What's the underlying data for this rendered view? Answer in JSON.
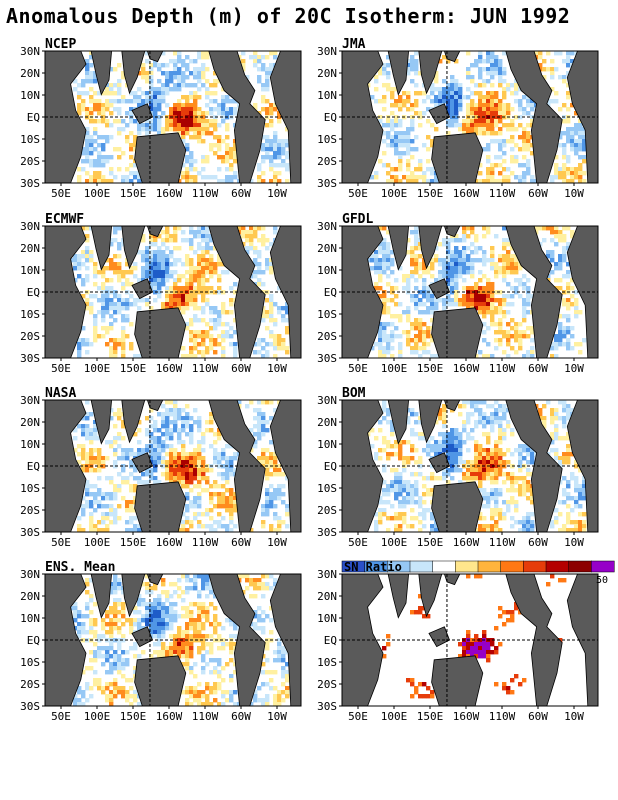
{
  "title": "Anomalous Depth (m) of 20C Isotherm: JUN 1992",
  "colors": {
    "land": "#5a5a5a",
    "ocean_neutral": "#ffffff",
    "negative_scale": [
      "#1e5cc8",
      "#5096e6",
      "#96c8f5",
      "#c8e6fa"
    ],
    "positive_scale": [
      "#fff0a0",
      "#ffc850",
      "#ff8c1e",
      "#e63c0a",
      "#aa0000"
    ],
    "sn_scale": [
      "#2a50c8",
      "#5096e6",
      "#96c8f5",
      "#c8e6fa",
      "#ffffff",
      "#ffe68c",
      "#ffb43c",
      "#ff7814",
      "#e63c0a",
      "#b40000",
      "#8c0000",
      "#9600c8"
    ]
  },
  "chart_data": {
    "type": "heatmap",
    "x_ticks": [
      "50E",
      "100E",
      "150E",
      "160W",
      "110W",
      "60W",
      "10W"
    ],
    "y_ticks": [
      "30N",
      "20N",
      "10N",
      "EQ",
      "10S",
      "20S",
      "30S"
    ],
    "panels": [
      {
        "name": "NCEP"
      },
      {
        "name": "JMA"
      },
      {
        "name": "ECMWF"
      },
      {
        "name": "GFDL"
      },
      {
        "name": "NASA"
      },
      {
        "name": "BOM"
      },
      {
        "name": "ENS. Mean"
      },
      {
        "name": "SN Ratio"
      }
    ],
    "sn_colorbar": {
      "label": "SN Ratio",
      "max_label": "50"
    }
  }
}
